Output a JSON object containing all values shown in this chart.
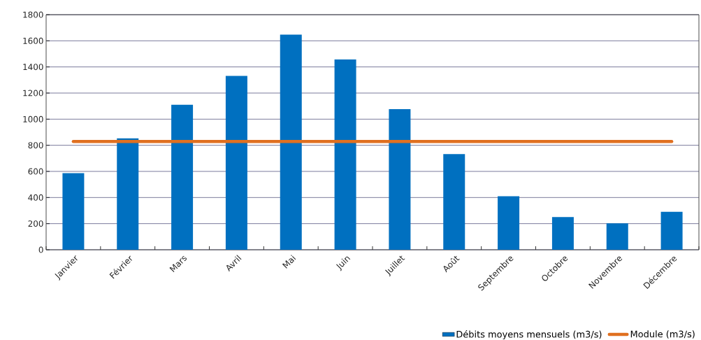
{
  "chart_data": {
    "type": "bar",
    "categories": [
      "Janvier",
      "Février",
      "Mars",
      "Avril",
      "Mai",
      "Juin",
      "Juillet",
      "Août",
      "Septembre",
      "Octobre",
      "Novembre",
      "Décembre"
    ],
    "series": [
      {
        "name": "Débits moyens mensuels (m3/s)",
        "color": "#0070c0",
        "values": [
          587,
          853,
          1110,
          1331,
          1647,
          1457,
          1077,
          733,
          410,
          250,
          202,
          291
        ]
      },
      {
        "name": "Module (m3/s)",
        "type": "line",
        "color": "#e07020",
        "values": [
          829,
          829,
          829,
          829,
          829,
          829,
          829,
          829,
          829,
          829,
          829,
          829
        ]
      }
    ],
    "ylim": [
      0,
      1800
    ],
    "yticks": [
      0,
      200,
      400,
      600,
      800,
      1000,
      1200,
      1400,
      1600,
      1800
    ],
    "grid": "y",
    "legend": "bottom right"
  }
}
